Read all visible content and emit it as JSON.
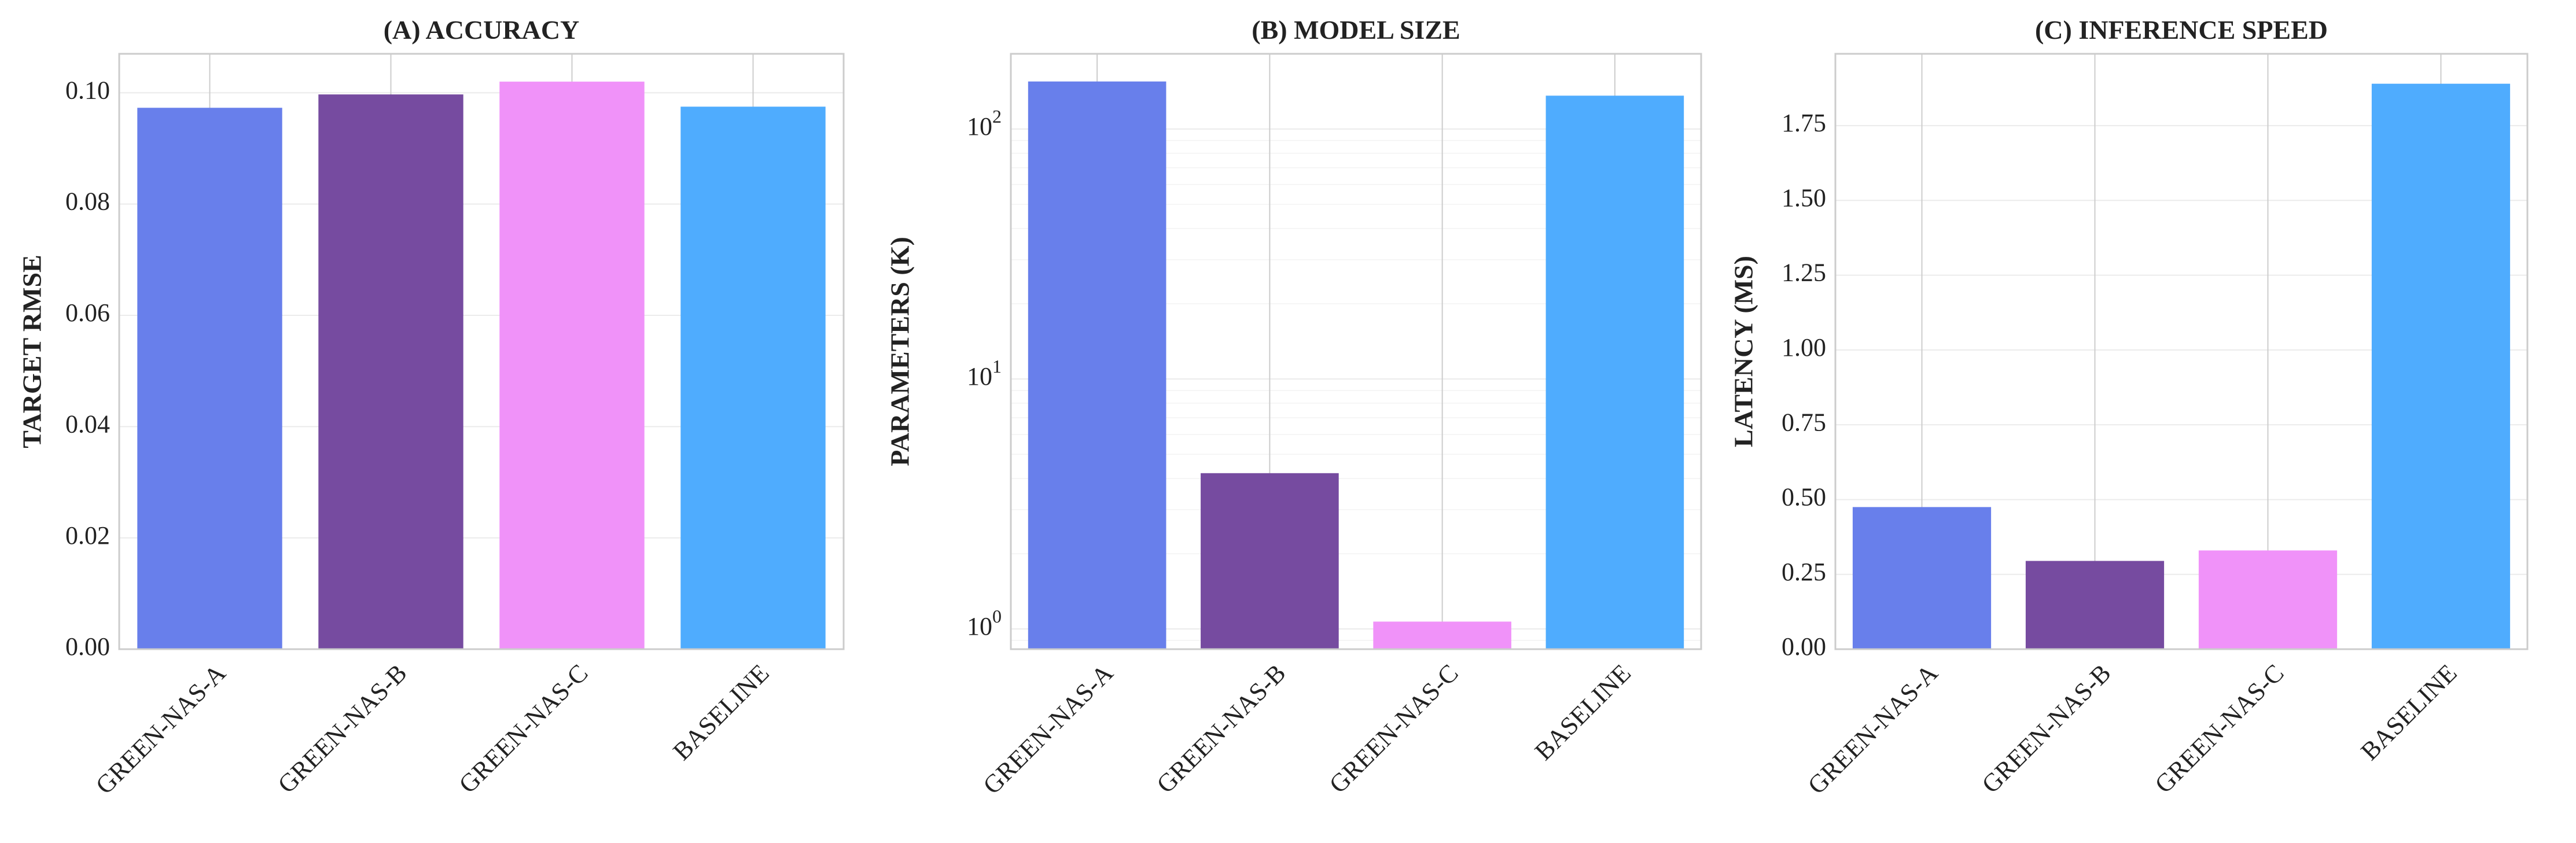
{
  "chart_data": [
    {
      "type": "bar",
      "title": "(A) ACCURACY",
      "ylabel": "TARGET RMSE",
      "xlabel": "",
      "categories": [
        "GREEN-NAS-A",
        "GREEN-NAS-B",
        "GREEN-NAS-C",
        "BASELINE"
      ],
      "values": [
        0.0973,
        0.0997,
        0.102,
        0.0975
      ],
      "colors": [
        "#687FEB",
        "#764BA0",
        "#F092F9",
        "#4FACFE"
      ],
      "yscale": "linear",
      "ylim": [
        0,
        0.107
      ],
      "yticks": [
        0.0,
        0.02,
        0.04,
        0.06,
        0.08,
        0.1
      ],
      "ytick_labels": [
        "0.00",
        "0.02",
        "0.04",
        "0.06",
        "0.08",
        "0.10"
      ],
      "grid": true
    },
    {
      "type": "bar",
      "title": "(B) MODEL SIZE",
      "ylabel": "PARAMETERS (K)",
      "xlabel": "",
      "categories": [
        "GREEN-NAS-A",
        "GREEN-NAS-B",
        "GREEN-NAS-C",
        "BASELINE"
      ],
      "values": [
        155.0,
        4.2,
        1.07,
        136.0
      ],
      "colors": [
        "#687FEB",
        "#764BA0",
        "#F092F9",
        "#4FACFE"
      ],
      "yscale": "log",
      "ylim": [
        0.83,
        200
      ],
      "yticks": [
        1,
        10,
        100
      ],
      "ytick_labels": [
        "10^0",
        "10^1",
        "10^2"
      ],
      "grid": true
    },
    {
      "type": "bar",
      "title": "(C) INFERENCE SPEED",
      "ylabel": "LATENCY (MS)",
      "xlabel": "",
      "categories": [
        "GREEN-NAS-A",
        "GREEN-NAS-B",
        "GREEN-NAS-C",
        "BASELINE"
      ],
      "values": [
        0.475,
        0.295,
        0.33,
        1.89
      ],
      "colors": [
        "#687FEB",
        "#764BA0",
        "#F092F9",
        "#4FACFE"
      ],
      "yscale": "linear",
      "ylim": [
        0,
        1.99
      ],
      "yticks": [
        0.0,
        0.25,
        0.5,
        0.75,
        1.0,
        1.25,
        1.5,
        1.75
      ],
      "ytick_labels": [
        "0.00",
        "0.25",
        "0.50",
        "0.75",
        "1.00",
        "1.25",
        "1.50",
        "1.75"
      ],
      "grid": true
    }
  ]
}
